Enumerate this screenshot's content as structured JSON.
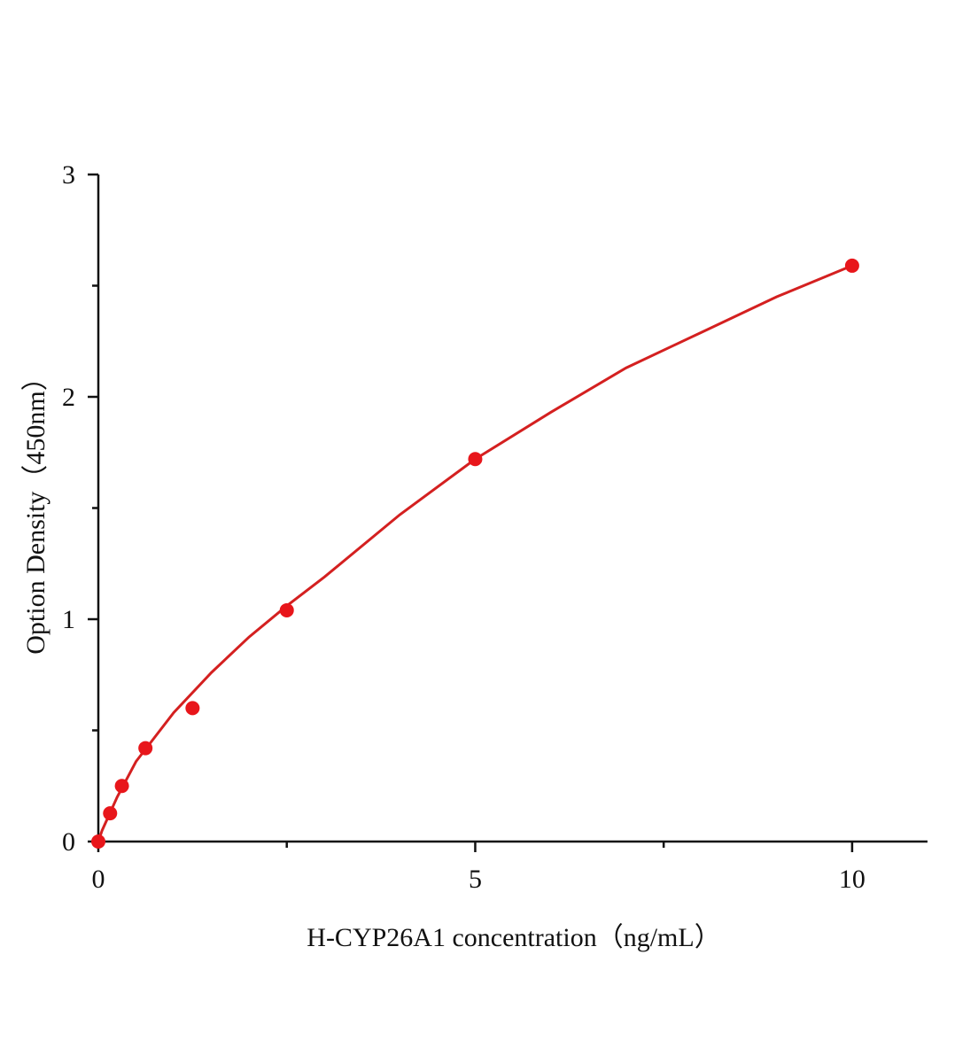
{
  "chart_data": {
    "type": "scatter",
    "x_label": "H-CYP26A1 concentration（ng/mL）",
    "y_label": "Option Density（450nm）",
    "xlim": [
      0,
      11
    ],
    "ylim": [
      0,
      3
    ],
    "xticks": [
      0,
      5,
      10
    ],
    "yticks": [
      0,
      1,
      2,
      3
    ],
    "xminorticks": [
      2.5,
      7.5
    ],
    "yminorticks": [
      0.5,
      1.5,
      2.5
    ],
    "series": [
      {
        "type": "scatter",
        "color": "#e8161b",
        "x": [
          0,
          0.156,
          0.3125,
          0.625,
          1.25,
          2.5,
          5,
          10
        ],
        "values": [
          0,
          0.127,
          0.25,
          0.42,
          0.6,
          1.04,
          1.72,
          2.59
        ]
      },
      {
        "type": "line",
        "color": "#d42020",
        "x": [
          0,
          0.05,
          0.25,
          0.5,
          1,
          1.5,
          2,
          2.5,
          3,
          4,
          5,
          6,
          7,
          8,
          9,
          10
        ],
        "values": [
          0,
          0.05,
          0.2,
          0.36,
          0.58,
          0.76,
          0.92,
          1.06,
          1.19,
          1.47,
          1.72,
          1.93,
          2.13,
          2.29,
          2.45,
          2.59
        ]
      }
    ]
  }
}
